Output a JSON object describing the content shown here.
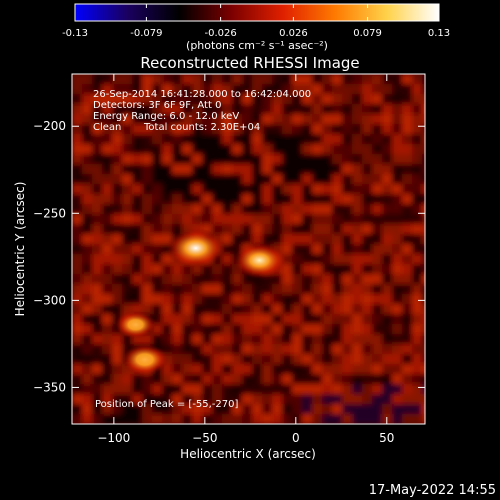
{
  "colorbar": {
    "ticks": [
      -0.13,
      -0.079,
      -0.026,
      0.026,
      0.079,
      0.13
    ],
    "tick_labels": [
      "-0.13",
      "-0.079",
      "-0.026",
      "0.026",
      "0.079",
      "0.13"
    ],
    "unit_text": "(photons cm⁻² s⁻¹ asec⁻²)",
    "range": [
      -0.13,
      0.13
    ],
    "colors": [
      "#0000ff",
      "#1a0060",
      "#000000",
      "#7a0000",
      "#e02000",
      "#ff7a00",
      "#ffd24a",
      "#ffffff"
    ]
  },
  "chart_data": {
    "type": "heatmap",
    "title": "Reconstructed RHESSI Image",
    "xlabel": "Heliocentric X (arcsec)",
    "ylabel": "Heliocentric Y (arcsec)",
    "xlim": [
      -123,
      71
    ],
    "ylim": [
      -371,
      -170
    ],
    "x_ticks": [
      -100,
      -50,
      0,
      50
    ],
    "x_tick_labels": [
      "−100",
      "−50",
      "0",
      "50"
    ],
    "y_ticks": [
      -200,
      -250,
      -300,
      -350
    ],
    "y_tick_labels": [
      "−200",
      "−250",
      "−300",
      "−350"
    ],
    "sources": [
      {
        "x": -55,
        "y": -270,
        "peak": 0.13
      },
      {
        "x": -20,
        "y": -277,
        "peak": 0.1
      },
      {
        "x": -83,
        "y": -334,
        "peak": 0.07
      },
      {
        "x": -88,
        "y": -314,
        "peak": 0.045
      }
    ],
    "annotations": {
      "time": "26-Sep-2014 16:41:28.000 to 16:42:04.000",
      "detectors": "Detectors: 3F 6F 9F, Att 0",
      "energy": "Energy Range: 6.0 - 12.0 keV",
      "method": "Clean",
      "counts": "Total counts: 2.30E+04",
      "peak": "Position of Peak = [-55,-270]"
    }
  },
  "footer": {
    "date": "17-May-2022 14:55"
  }
}
